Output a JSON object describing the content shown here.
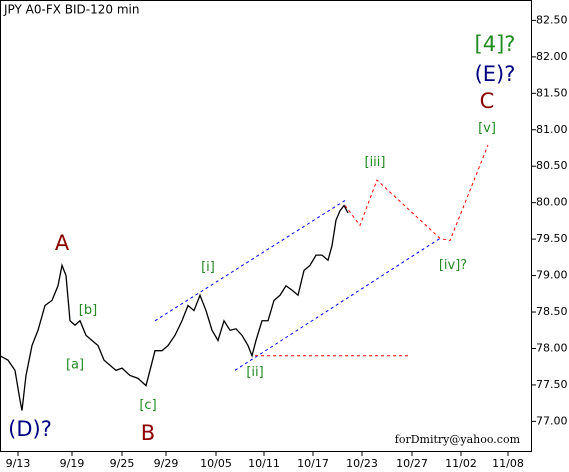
{
  "chart_data": {
    "type": "line",
    "title": "JPY A0-FX BID-120 min",
    "watermark": "forDmitry@yahoo.com",
    "color": "#000000",
    "x": [
      0,
      8,
      15,
      20,
      22,
      26,
      32,
      38,
      45,
      52,
      58,
      62,
      66,
      70,
      75,
      80,
      86,
      92,
      98,
      104,
      110,
      116,
      122,
      130,
      138,
      146,
      150,
      155,
      162,
      168,
      175,
      182,
      188,
      194,
      200,
      206,
      212,
      218,
      224,
      230,
      236,
      242,
      248,
      252,
      256,
      262,
      268,
      274,
      280,
      286,
      292,
      298,
      304,
      310,
      316,
      322,
      328,
      332,
      336,
      340,
      344,
      348
    ],
    "values": [
      77.9,
      77.84,
      77.7,
      77.29,
      77.15,
      77.63,
      78.04,
      78.25,
      78.59,
      78.66,
      78.86,
      79.14,
      79.0,
      78.38,
      78.32,
      78.38,
      78.18,
      78.11,
      78.04,
      77.84,
      77.77,
      77.7,
      77.73,
      77.63,
      77.59,
      77.49,
      77.7,
      77.97,
      77.97,
      78.04,
      78.18,
      78.38,
      78.59,
      78.52,
      78.73,
      78.52,
      78.25,
      78.11,
      78.38,
      78.25,
      78.27,
      78.18,
      78.04,
      77.9,
      78.11,
      78.38,
      78.38,
      78.66,
      78.73,
      78.86,
      78.8,
      78.73,
      79.07,
      79.14,
      79.28,
      79.28,
      79.21,
      79.41,
      79.76,
      79.89,
      79.96,
      79.86
    ],
    "xlim": [
      0,
      532
    ],
    "ylim": [
      76.58,
      82.78
    ],
    "xticks": [
      {
        "value": 18,
        "label": "9/13"
      },
      {
        "value": 72,
        "label": "9/19"
      },
      {
        "value": 122,
        "label": "9/25"
      },
      {
        "value": 166,
        "label": "9/29"
      },
      {
        "value": 216,
        "label": "10/05"
      },
      {
        "value": 264,
        "label": "10/11"
      },
      {
        "value": 313,
        "label": "10/17"
      },
      {
        "value": 362,
        "label": "10/23"
      },
      {
        "value": 412,
        "label": "10/27"
      },
      {
        "value": 461,
        "label": "11/02"
      },
      {
        "value": 508,
        "label": "11/08"
      }
    ],
    "yticks": [
      {
        "value": 77,
        "label": "77.00"
      },
      {
        "value": 77.5,
        "label": "77.50"
      },
      {
        "value": 78,
        "label": "78.00"
      },
      {
        "value": 78.5,
        "label": "78.50"
      },
      {
        "value": 79,
        "label": "79.00"
      },
      {
        "value": 79.5,
        "label": "79.50"
      },
      {
        "value": 80,
        "label": "80.00"
      },
      {
        "value": 80.5,
        "label": "80.50"
      },
      {
        "value": 81,
        "label": "81.00"
      },
      {
        "value": 81.5,
        "label": "81.50"
      },
      {
        "value": 82,
        "label": "82.00"
      },
      {
        "value": 82.5,
        "label": "82.50"
      }
    ],
    "major_labels": [
      {
        "text": "[4]?",
        "color": "#228B22",
        "x": 495,
        "y": 82.16
      },
      {
        "text": "(E)?",
        "color": "#000080",
        "x": 495,
        "y": 81.75
      },
      {
        "text": "C",
        "color": "#8B0000",
        "x": 487,
        "y": 81.38
      },
      {
        "text": "A",
        "color": "#8B0000",
        "x": 62,
        "y": 79.43
      },
      {
        "text": "B",
        "color": "#8B0000",
        "x": 148,
        "y": 76.83
      },
      {
        "text": "(D)?",
        "color": "#000080",
        "x": 30,
        "y": 76.88
      }
    ],
    "minor_labels": [
      {
        "text": "[v]",
        "color": "#228B22",
        "x": 487,
        "y": 81.02
      },
      {
        "text": "[iii]",
        "color": "#228B22",
        "x": 375,
        "y": 80.55
      },
      {
        "text": "[iv]?",
        "color": "#228B22",
        "x": 453,
        "y": 79.14
      },
      {
        "text": "[i]",
        "color": "#228B22",
        "x": 208,
        "y": 79.11
      },
      {
        "text": "[ii]",
        "color": "#228B22",
        "x": 255,
        "y": 77.67
      },
      {
        "text": "[b]",
        "color": "#228B22",
        "x": 88,
        "y": 78.52
      },
      {
        "text": "[a]",
        "color": "#228B22",
        "x": 75,
        "y": 77.77
      },
      {
        "text": "[c]",
        "color": "#228B22",
        "x": 148,
        "y": 77.22
      }
    ],
    "overlays": [
      {
        "color": "#0000ff",
        "x": [
          155,
          345
        ],
        "values": [
          78.38,
          80.03
        ]
      },
      {
        "color": "#0000ff",
        "x": [
          235,
          440
        ],
        "values": [
          77.7,
          79.51
        ]
      },
      {
        "color": "#ff0000",
        "x": [
          255,
          410
        ],
        "values": [
          77.9,
          77.9
        ]
      },
      {
        "color": "#ff0000",
        "x": [
          345,
          360,
          377,
          440,
          450,
          488
        ],
        "values": [
          79.96,
          79.69,
          80.31,
          79.51,
          79.48,
          80.79
        ]
      }
    ]
  }
}
